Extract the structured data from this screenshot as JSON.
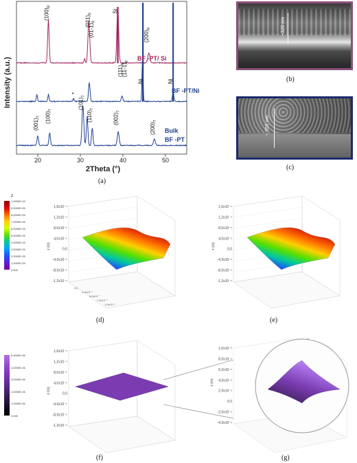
{
  "panel_a": {
    "label": "(a)",
    "ylabel": "Intensity (a.u.)",
    "xlabel": "2Theta (°)",
    "xticks": [
      "20",
      "30",
      "40",
      "50"
    ],
    "xlim": [
      15,
      55
    ],
    "curves": [
      {
        "name": "BF -PT/ Si",
        "color": "#a0245e"
      },
      {
        "name": "BF -PT/Ni",
        "color": "#1f3f8f"
      },
      {
        "name": "Bulk BF -PT",
        "color": "#1f3f8f"
      }
    ],
    "top_peaks": [
      {
        "x": 22.5,
        "text": "(100)",
        "sub": "R"
      },
      {
        "x": 32.2,
        "text": "(011)",
        "sub": "R"
      },
      {
        "x": 33.0,
        "text": "(01-1)",
        "sub": "R"
      },
      {
        "x": 38.6,
        "text": "Si",
        "sub": ""
      },
      {
        "x": 46.0,
        "text": "(200)",
        "sub": "R"
      }
    ],
    "mid_peaks": [
      {
        "x": 28.3,
        "text": "*",
        "sub": ""
      },
      {
        "x": 39.8,
        "text": "(111)",
        "sub": "R"
      },
      {
        "x": 40.8,
        "text": "(11-1)",
        "sub": "R"
      },
      {
        "x": 44.6,
        "text": "Ni",
        "sub": ""
      },
      {
        "x": 51.6,
        "text": "Ni",
        "sub": ""
      }
    ],
    "bot_peaks": [
      {
        "x": 20.0,
        "text": "(001)",
        "sub": "T"
      },
      {
        "x": 22.8,
        "text": "(100)",
        "sub": "T"
      },
      {
        "x": 30.6,
        "text": "(101)",
        "sub": "T"
      },
      {
        "x": 32.6,
        "text": "(110)",
        "sub": "T"
      },
      {
        "x": 38.8,
        "text": "(002)",
        "sub": "T"
      },
      {
        "x": 47.4,
        "text": "(200)",
        "sub": "T"
      }
    ],
    "legend_bulk": [
      "Bulk",
      "BF -PT"
    ]
  },
  "panel_b": {
    "label": "(b)",
    "scale_text": "~320 nm",
    "border": "#8b4f7a"
  },
  "panel_c": {
    "label": "(c)",
    "scale_text": "~ 550 nm",
    "border": "#1b2a6b"
  },
  "panel_d": {
    "label": "(d)",
    "cb_title": "z",
    "cb_ticks": [
      "1,0000E-04",
      "9,0000E-05",
      "8,0000E-05",
      "7,0000E-05",
      "6,0000E-05",
      "5,0000E-05",
      "4,0000E-05",
      "3,0000E-05",
      "2,0000E-05",
      "1,0000E-05",
      "0,000"
    ],
    "z_ticks": [
      "1,6x10⁻⁴",
      "1,2x10⁻⁴",
      "8,0x10⁻⁵",
      "4,0x10⁻⁵",
      "0,0",
      "-4,0x10⁻⁵",
      "-8,0x10⁻⁵",
      "-1,2x10⁻⁴"
    ],
    "zlabel": "z (m)",
    "x_ticks": [
      "0,0",
      "2,5x10⁻⁷",
      "5,0x10⁻⁷",
      "7,5x10⁻⁷",
      "1,0x10⁻⁶"
    ],
    "y_ticks": [
      "0,0",
      "2,5x10⁻⁷",
      "5,0x10⁻⁷",
      "7,5x10⁻⁷",
      "1,0x10⁻⁶"
    ],
    "xlabel": "x (m)",
    "ylabel": "y (m)"
  },
  "panel_e": {
    "label": "(e)",
    "z_ticks": [
      "1,6x10⁻⁴",
      "1,2x10⁻⁴",
      "8,0x10⁻⁵",
      "4,0x10⁻⁵",
      "0,0",
      "-4,0x10⁻⁵",
      "-8,0x10⁻⁵",
      "-1,2x10⁻⁴"
    ],
    "zlabel": "z (m)"
  },
  "panel_f": {
    "label": "(f)",
    "cb_ticks": [
      "5,0000E-06",
      "4,0000E-06",
      "3,0000E-06",
      "2,0000E-06",
      "1,0000E-06",
      "0,000"
    ],
    "z_ticks": [
      "1,6x10⁻⁴",
      "1,2x10⁻⁴",
      "8,0x10⁻⁵",
      "4,0x10⁻⁵",
      "0,0",
      "-4,0x10⁻⁵",
      "-8,0x10⁻⁵",
      "-1,2x10⁻⁴"
    ],
    "zlabel": "z (m)"
  },
  "panel_g": {
    "label": "(g)",
    "z_ticks": [
      "1,0x10⁻⁵",
      "8,0x10⁻⁶",
      "6,0x10⁻⁶",
      "4,0x10⁻⁶",
      "2,0x10⁻⁶",
      "0,0",
      "-2,0x10⁻⁶",
      "-4,0x10⁻⁶"
    ],
    "zlabel": "z (m)"
  }
}
